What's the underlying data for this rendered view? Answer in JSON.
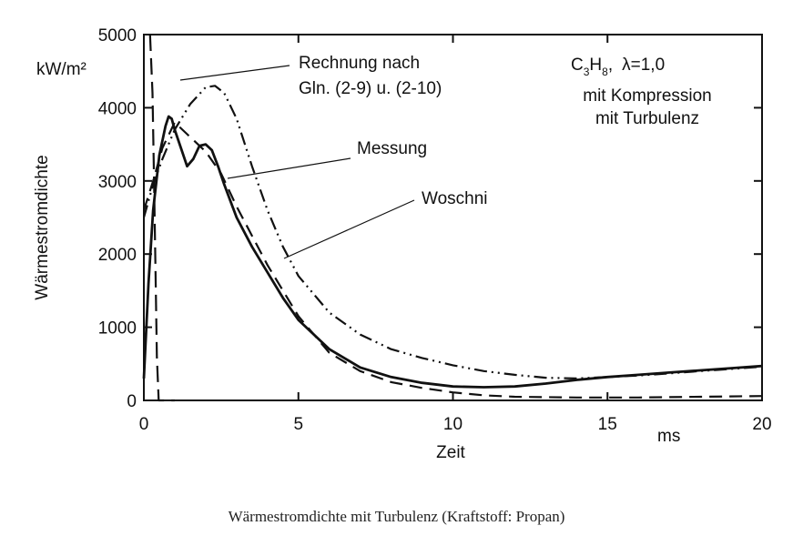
{
  "caption": "Wärmestromdichte mit Turbulenz (Kraftstoff: Propan)",
  "chart_data": {
    "type": "line",
    "title": "",
    "xlabel": "Zeit",
    "x_unit": "ms",
    "ylabel": "Wärmestromdichte",
    "y_unit": "kW/m²",
    "xlim": [
      0,
      20
    ],
    "ylim": [
      0,
      5000
    ],
    "x_ticks": [
      "0",
      "5",
      "10",
      "15",
      "20"
    ],
    "y_ticks": [
      "0",
      "1000",
      "2000",
      "3000",
      "4000",
      "5000"
    ],
    "grid": false,
    "info_box": {
      "fuel_prefix": "C",
      "fuel_sub1": "3",
      "fuel_mid": "H",
      "fuel_sub2": "8",
      "fuel_sep": ",",
      "lambda": "λ=1,0",
      "line1": "mit Kompression",
      "line2": "mit Turbulenz"
    },
    "annotations": {
      "rechnung_line1": "Rechnung nach",
      "rechnung_line2": "Gln. (2-9) u. (2-10)",
      "messung": "Messung",
      "woschni": "Woschni"
    },
    "series": [
      {
        "name": "Messung",
        "style": "solid",
        "x": [
          0,
          0.15,
          0.3,
          0.5,
          0.7,
          0.8,
          0.9,
          1.0,
          1.2,
          1.4,
          1.6,
          1.8,
          2.0,
          2.2,
          2.4,
          2.6,
          3.0,
          3.5,
          4.0,
          4.5,
          5.0,
          6.0,
          7.0,
          8.0,
          9.0,
          10.0,
          11.0,
          12.0,
          13.0,
          14.0,
          15.0,
          16.0,
          17.0,
          18.0,
          19.0,
          20.0
        ],
        "y": [
          300,
          1600,
          2600,
          3350,
          3750,
          3880,
          3850,
          3700,
          3450,
          3200,
          3300,
          3480,
          3500,
          3420,
          3200,
          2950,
          2500,
          2100,
          1750,
          1400,
          1100,
          700,
          450,
          320,
          240,
          190,
          180,
          190,
          230,
          280,
          320,
          350,
          380,
          410,
          440,
          470
        ]
      },
      {
        "name": "Woschni",
        "style": "dashed",
        "x": [
          0,
          0.3,
          0.6,
          1.0,
          1.5,
          2.0,
          2.5,
          3.0,
          3.5,
          4.0,
          4.5,
          5.0,
          6.0,
          7.0,
          8.0,
          9.0,
          10.0,
          11.0,
          12.0,
          14.0,
          16.0,
          18.0,
          20.0
        ],
        "y": [
          2600,
          3000,
          3450,
          3800,
          3600,
          3400,
          3100,
          2650,
          2250,
          1850,
          1500,
          1150,
          650,
          400,
          250,
          170,
          110,
          70,
          50,
          40,
          40,
          50,
          60
        ]
      },
      {
        "name": "Rechnung nach Gln. (2-9) u. (2-10)",
        "style": "dashdotdot",
        "x": [
          0,
          0.3,
          0.6,
          1.0,
          1.5,
          2.0,
          2.3,
          2.6,
          3.0,
          3.5,
          4.0,
          4.5,
          5.0,
          6.0,
          7.0,
          8.0,
          9.0,
          10.0,
          11.0,
          12.0,
          13.0,
          14.0,
          15.0,
          16.0,
          17.0,
          18.0,
          19.0,
          20.0
        ],
        "y": [
          2500,
          2950,
          3300,
          3700,
          4050,
          4280,
          4300,
          4200,
          3850,
          3200,
          2600,
          2100,
          1700,
          1200,
          900,
          700,
          580,
          480,
          400,
          350,
          310,
          300,
          320,
          340,
          370,
          400,
          430,
          460
        ]
      },
      {
        "name": "",
        "style": "longdash",
        "x": [
          0.2,
          0.28,
          0.33,
          0.38,
          0.42,
          0.48,
          0.6,
          0.8,
          1.0
        ],
        "y": [
          5000,
          4200,
          3000,
          1700,
          600,
          0,
          0,
          0,
          0
        ]
      }
    ]
  }
}
